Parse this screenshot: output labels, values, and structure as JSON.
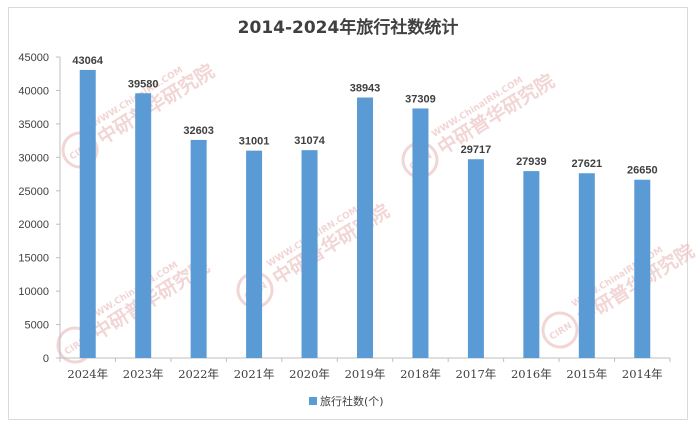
{
  "chart_data": {
    "type": "bar",
    "title": "2014-2024年旅行社数统计",
    "xlabel": "",
    "ylabel": "",
    "categories": [
      "2024年",
      "2023年",
      "2022年",
      "2021年",
      "2020年",
      "2019年",
      "2018年",
      "2017年",
      "2016年",
      "2015年",
      "2014年"
    ],
    "series": [
      {
        "name": "旅行社数(个)",
        "values": [
          43064,
          39580,
          32603,
          31001,
          31074,
          38943,
          37309,
          29717,
          27939,
          27621,
          26650
        ],
        "color": "#5b9bd5"
      }
    ],
    "ylim": [
      0,
      45000
    ],
    "yticks": [
      0,
      5000,
      10000,
      15000,
      20000,
      25000,
      30000,
      35000,
      40000,
      45000
    ],
    "grid": false,
    "legend_position": "bottom",
    "data_labels": true
  },
  "watermark": {
    "logo_text": "CIRN",
    "brand_text": "中研普华研究院",
    "url_text": "WWW.ChinaIRN.COM",
    "color": "#e8b3b3"
  },
  "colors": {
    "bar": "#5b9bd5",
    "axis": "#bfbfbf",
    "text": "#404040",
    "border": "#d9d9d9"
  }
}
